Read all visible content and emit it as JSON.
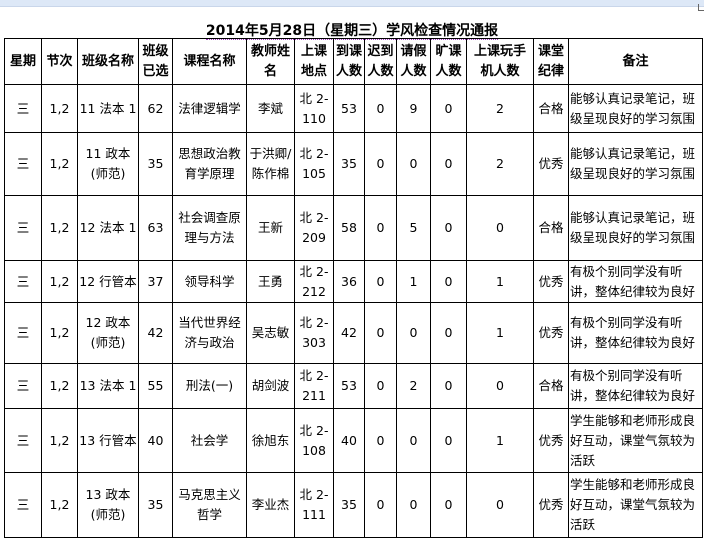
{
  "title": "2014年5月28日（星期三）学风检查情况通报",
  "headers": [
    "星期",
    "节次",
    "班级名称",
    "班级已选",
    "课程名称",
    "教师姓名",
    "上课地点",
    "到课人数",
    "迟到人数",
    "请假人数",
    "旷课人数",
    "上课玩手机人数",
    "课堂纪律",
    "备注"
  ],
  "rows": [
    {
      "weekday": "三",
      "period": "1,2",
      "class_name": "11 法本 1",
      "enrolled": "62",
      "course": "法律逻辑学",
      "teacher": "李斌",
      "location": "北 2-110",
      "present": "53",
      "late": "0",
      "leave": "9",
      "absent": "0",
      "phone": "2",
      "discipline": "合格",
      "note": "能够认真记录笔记，班级呈现良好的学习氛围"
    },
    {
      "weekday": "三",
      "period": "1,2",
      "class_name": "11 政本 (师范)",
      "enrolled": "35",
      "course": "思想政治教育学原理",
      "teacher": "于洪卿/陈作棉",
      "location": "北 2-105",
      "present": "35",
      "late": "0",
      "leave": "0",
      "absent": "0",
      "phone": "2",
      "discipline": "优秀",
      "note": "能够认真记录笔记，班级呈现良好的学习氛围"
    },
    {
      "weekday": "三",
      "period": "1,2",
      "class_name": "12 法本 1",
      "enrolled": "63",
      "course": "社会调查原理与方法",
      "teacher": "王新",
      "location": "北 2-209",
      "present": "58",
      "late": "0",
      "leave": "5",
      "absent": "0",
      "phone": "0",
      "discipline": "合格",
      "note": "能够认真记录笔记，班级呈现良好的学习氛围"
    },
    {
      "weekday": "三",
      "period": "1,2",
      "class_name": "12 行管本",
      "enrolled": "37",
      "course": "领导科学",
      "teacher": "王勇",
      "location": "北 2-212",
      "present": "36",
      "late": "0",
      "leave": "1",
      "absent": "0",
      "phone": "1",
      "discipline": "优秀",
      "note": "有极个别同学没有听讲，整体纪律较为良好"
    },
    {
      "weekday": "三",
      "period": "1,2",
      "class_name": "12 政本 (师范)",
      "enrolled": "42",
      "course": "当代世界经济与政治",
      "teacher": "吴志敏",
      "location": "北 2-303",
      "present": "42",
      "late": "0",
      "leave": "0",
      "absent": "0",
      "phone": "1",
      "discipline": "优秀",
      "note": "有极个别同学没有听讲，整体纪律较为良好"
    },
    {
      "weekday": "三",
      "period": "1,2",
      "class_name": "13 法本 1",
      "enrolled": "55",
      "course": "刑法(一)",
      "teacher": "胡剑波",
      "location": "北 2-211",
      "present": "53",
      "late": "0",
      "leave": "2",
      "absent": "0",
      "phone": "0",
      "discipline": "合格",
      "note": "有极个别同学没有听讲，整体纪律较为良好"
    },
    {
      "weekday": "三",
      "period": "1,2",
      "class_name": "13 行管本",
      "enrolled": "40",
      "course": "社会学",
      "teacher": "徐旭东",
      "location": "北 2-108",
      "present": "40",
      "late": "0",
      "leave": "0",
      "absent": "0",
      "phone": "1",
      "discipline": "优秀",
      "note": "学生能够和老师形成良好互动，课堂气氛较为活跃"
    },
    {
      "weekday": "三",
      "period": "1,2",
      "class_name": "13 政本 (师范)",
      "enrolled": "35",
      "course": "马克思主义哲学",
      "teacher": "李业杰",
      "location": "北 2-111",
      "present": "35",
      "late": "0",
      "leave": "0",
      "absent": "0",
      "phone": "0",
      "discipline": "优秀",
      "note": "学生能够和老师形成良好互动，课堂气氛较为活跃"
    }
  ]
}
